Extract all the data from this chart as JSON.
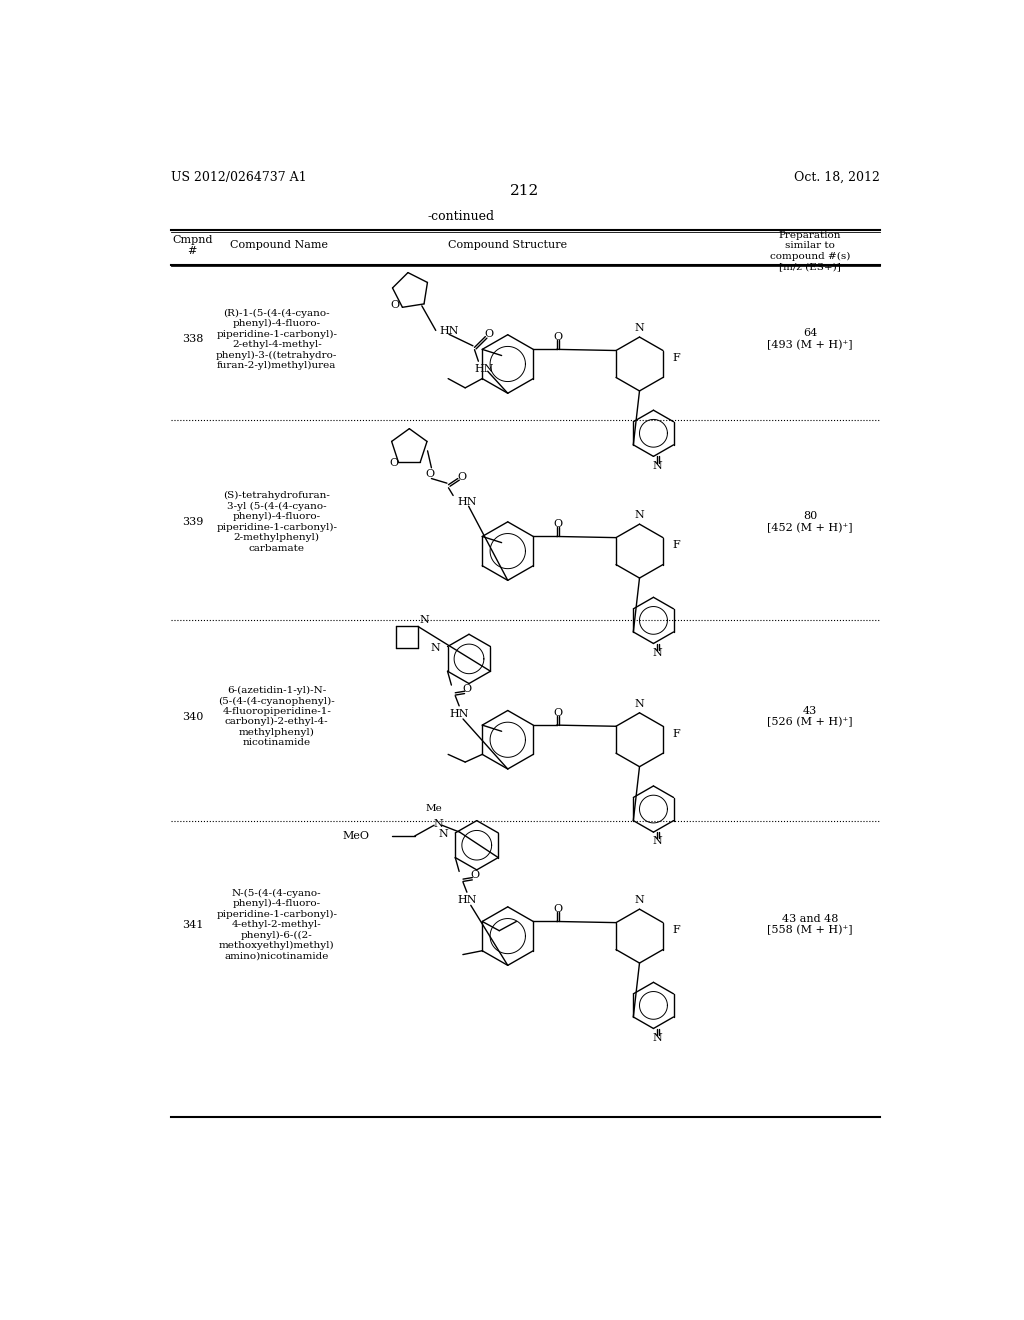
{
  "page_number": "212",
  "patent_number": "US 2012/0264737 A1",
  "patent_date": "Oct. 18, 2012",
  "continued_label": "-continued",
  "compounds": [
    {
      "num": "338",
      "name": "(R)-1-(5-(4-(4-cyano-\nphenyl)-4-fluoro-\npiperidine-1-carbonyl)-\n2-ethyl-4-methyl-\nphenyl)-3-((tetrahydro-\nfuran-2-yl)methyl)urea",
      "prep": "64\n[493 (M + H)⁺]"
    },
    {
      "num": "339",
      "name": "(S)-tetrahydrofuran-\n3-yl (5-(4-(4-cyano-\nphenyl)-4-fluoro-\npiperidine-1-carbonyl)-\n2-methylphenyl)\ncarbamate",
      "prep": "80\n[452 (M + H)⁺]"
    },
    {
      "num": "340",
      "name": "6-(azetidin-1-yl)-N-\n(5-(4-(4-cyanophenyl)-\n4-fluoropiperidine-1-\ncarbonyl)-2-ethyl-4-\nmethylphenyl)\nnicotinamide",
      "prep": "43\n[526 (M + H)⁺]"
    },
    {
      "num": "341",
      "name": "N-(5-(4-(4-cyano-\nphenyl)-4-fluoro-\npiperidine-1-carbonyl)-\n4-ethyl-2-methyl-\nphenyl)-6-((2-\nmethoxyethyl)methyl)\namino)nicotinamide",
      "prep": "43 and 48\n[558 (M + H)⁺]"
    }
  ],
  "bg_color": "#ffffff",
  "text_color": "#000000"
}
